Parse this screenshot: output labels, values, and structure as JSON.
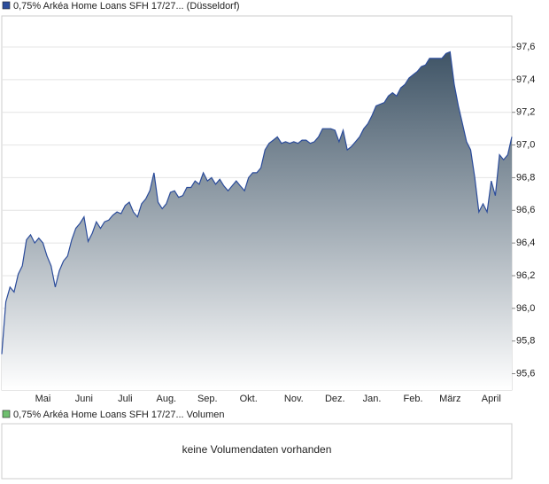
{
  "chart_data": {
    "type": "area",
    "series": [
      {
        "name": "0,75% Arkéa Home Loans SFH 17/27... (Düsseldorf)",
        "color": "#2b4c9b",
        "values": [
          95.72,
          96.04,
          96.13,
          96.1,
          96.21,
          96.26,
          96.42,
          96.45,
          96.4,
          96.43,
          96.4,
          96.32,
          96.26,
          96.13,
          96.23,
          96.29,
          96.32,
          96.42,
          96.49,
          96.52,
          96.56,
          96.41,
          96.46,
          96.53,
          96.49,
          96.53,
          96.54,
          96.57,
          96.59,
          96.58,
          96.63,
          96.65,
          96.59,
          96.56,
          96.64,
          96.67,
          96.72,
          96.83,
          96.65,
          96.61,
          96.64,
          96.71,
          96.72,
          96.68,
          96.69,
          96.74,
          96.74,
          96.78,
          96.76,
          96.83,
          96.78,
          96.8,
          96.76,
          96.79,
          96.75,
          96.72,
          96.75,
          96.78,
          96.75,
          96.72,
          96.8,
          96.83,
          96.83,
          96.86,
          96.97,
          97.01,
          97.03,
          97.05,
          97.01,
          97.02,
          97.01,
          97.02,
          97.01,
          97.03,
          97.03,
          97.01,
          97.02,
          97.05,
          97.1,
          97.1,
          97.1,
          97.09,
          97.02,
          97.09,
          96.97,
          96.99,
          97.02,
          97.05,
          97.1,
          97.13,
          97.18,
          97.24,
          97.25,
          97.26,
          97.3,
          97.32,
          97.3,
          97.35,
          97.37,
          97.41,
          97.43,
          97.45,
          97.48,
          97.49,
          97.53,
          97.53,
          97.53,
          97.53,
          97.56,
          97.57,
          97.37,
          97.24,
          97.13,
          97.02,
          96.97,
          96.8,
          96.59,
          96.64,
          96.59,
          96.78,
          96.69,
          96.94,
          96.91,
          96.94,
          97.05
        ]
      }
    ],
    "categories": [
      null,
      null,
      null,
      null,
      null,
      null,
      null,
      null,
      null,
      null,
      "Mai",
      null,
      null,
      null,
      null,
      null,
      null,
      null,
      null,
      null,
      "Juni",
      null,
      null,
      null,
      null,
      null,
      null,
      null,
      null,
      null,
      "Juli",
      null,
      null,
      null,
      null,
      null,
      null,
      null,
      null,
      null,
      "Aug.",
      null,
      null,
      null,
      null,
      null,
      null,
      null,
      null,
      null,
      "Sep.",
      null,
      null,
      null,
      null,
      null,
      null,
      null,
      null,
      null,
      "Okt.",
      null,
      null,
      null,
      null,
      null,
      null,
      null,
      null,
      null,
      null,
      "Nov.",
      null,
      null,
      null,
      null,
      null,
      null,
      null,
      null,
      null,
      "Dez.",
      null,
      null,
      null,
      null,
      null,
      null,
      null,
      null,
      "Jan.",
      null,
      null,
      null,
      null,
      null,
      null,
      null,
      null,
      null,
      "Feb.",
      null,
      null,
      null,
      null,
      null,
      null,
      null,
      null,
      "März",
      null,
      null,
      null,
      null,
      null,
      null,
      null,
      null,
      null,
      "April",
      null,
      null,
      null,
      null,
      null
    ],
    "ylim": [
      95.5,
      97.79
    ],
    "yticks": [
      {
        "value": 95.6,
        "label": "95,6"
      },
      {
        "value": 95.8,
        "label": "95,8"
      },
      {
        "value": 96.0,
        "label": "96,0"
      },
      {
        "value": 96.2,
        "label": "96,2"
      },
      {
        "value": 96.4,
        "label": "96,4"
      },
      {
        "value": 96.6,
        "label": "96,6"
      },
      {
        "value": 96.8,
        "label": "96,8"
      },
      {
        "value": 97.0,
        "label": "97,0"
      },
      {
        "value": 97.2,
        "label": "97,2"
      },
      {
        "value": 97.4,
        "label": "97,4"
      },
      {
        "value": 97.6,
        "label": "97,6"
      }
    ],
    "grid": true
  },
  "volume": {
    "legend": "0,75% Arkéa Home Loans SFH 17/27... Volumen",
    "color": "#6fbf6f",
    "message": "keine Volumendaten vorhanden"
  }
}
